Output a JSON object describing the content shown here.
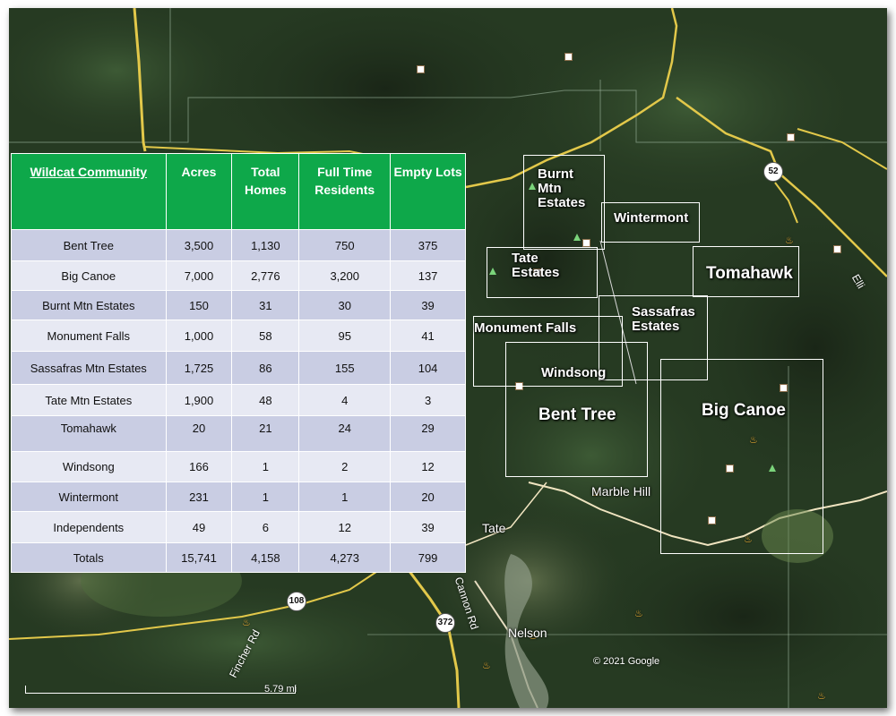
{
  "table": {
    "headers": [
      "Wildcat Community",
      "Acres",
      "Total Homes",
      "Full Time Residents",
      "Empty Lots"
    ],
    "rows": [
      [
        "Bent Tree",
        "3,500",
        "1,130",
        "750",
        "375"
      ],
      [
        "Big Canoe",
        "7,000",
        "2,776",
        "3,200",
        "137"
      ],
      [
        "Burnt Mtn Estates",
        "150",
        "31",
        "30",
        "39"
      ],
      [
        "Monument Falls",
        "1,000",
        "58",
        "95",
        "41"
      ],
      [
        "Sassafras Mtn Estates",
        "1,725",
        "86",
        "155",
        "104"
      ],
      [
        "Tate Mtn Estates",
        "1,900",
        "48",
        "4",
        "3"
      ],
      [
        "Tomahawk",
        "20",
        "21",
        "24",
        "29"
      ],
      [
        "Windsong",
        "166",
        "1",
        "2",
        "12"
      ],
      [
        "Wintermont",
        "231",
        "1",
        "1",
        "20"
      ],
      [
        "Independents",
        "49",
        "6",
        "12",
        "39"
      ],
      [
        "Totals",
        "15,741",
        "4,158",
        "4,273",
        "799"
      ]
    ]
  },
  "map": {
    "communities": {
      "burnt_mtn": "Burnt\nMtn\nEstates",
      "wintermont": "Wintermont",
      "tate": "Tate\nEstates",
      "tomahawk": "Tomahawk",
      "sassafras": "Sassafras\nEstates",
      "monument_falls": "Monument Falls",
      "windsong": "Windsong",
      "bent_tree": "Bent Tree",
      "big_canoe": "Big Canoe"
    },
    "places": {
      "marble_hill": "Marble Hill",
      "tate": "Tate",
      "nelson": "Nelson",
      "cannon_rd": "Cannon Rd",
      "fincher_rd": "Fincher Rd",
      "ellijay": "Elli"
    },
    "highways": {
      "h52": "52",
      "h108": "108",
      "h372": "372"
    },
    "scale": "5.79 mi",
    "copyright": "© 2021 Google"
  },
  "colors": {
    "header_green": "#0ea84a",
    "row_dark": "#c9cde3",
    "row_light": "#e7e9f3",
    "road_yellow": "#e2c84a"
  }
}
